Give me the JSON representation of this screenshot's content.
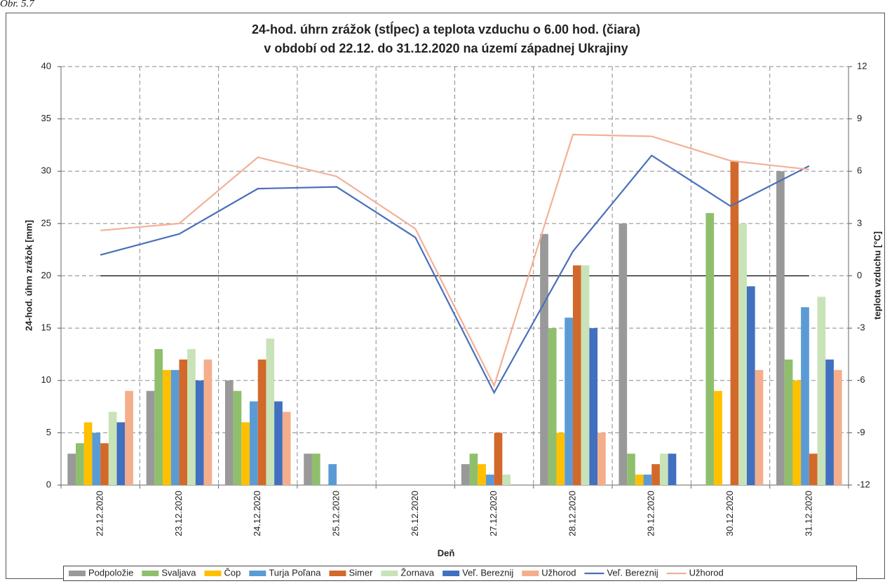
{
  "caption": "Obr. 5.7",
  "chart_data": {
    "type": "bar",
    "title": [
      "24-hod. úhrn zrážok (stĺpec) a teplota vzduchu o 6.00 hod. (čiara)",
      "v období od 22.12. do 31.12.2020  na území západnej Ukrajiny"
    ],
    "x_label": "Deň",
    "y_label": "24-hod. úhrn zrážok [mm]",
    "y2_label": "teplota vzduchu [°C]",
    "categories": [
      "22.12.2020",
      "23.12.2020",
      "24.12.2020",
      "25.12.2020",
      "26.12.2020",
      "27.12.2020",
      "28.12.2020",
      "29.12.2020",
      "30.12.2020",
      "31.12.2020"
    ],
    "ylim": [
      0,
      40
    ],
    "yticks": [
      0,
      5,
      10,
      15,
      20,
      25,
      30,
      35,
      40
    ],
    "y2lim": [
      -12,
      12
    ],
    "y2ticks": [
      -12,
      -9,
      -6,
      -3,
      0,
      3,
      6,
      9,
      12
    ],
    "grid": true,
    "legend": "bottom",
    "series": [
      {
        "name": "Podpoložie",
        "type": "bar",
        "color": "#999999",
        "values": [
          3,
          9,
          10,
          3,
          0,
          2,
          24,
          25,
          0,
          30
        ]
      },
      {
        "name": "Svaljava",
        "type": "bar",
        "color": "#8fbf6c",
        "values": [
          4,
          13,
          9,
          3,
          0,
          3,
          15,
          3,
          26,
          12
        ]
      },
      {
        "name": "Čop",
        "type": "bar",
        "color": "#ffc000",
        "values": [
          6,
          11,
          6,
          0,
          0,
          2,
          5,
          1,
          9,
          10
        ]
      },
      {
        "name": "Turja Poľana",
        "type": "bar",
        "color": "#5b9bd5",
        "values": [
          5,
          11,
          8,
          2,
          0,
          1,
          16,
          1,
          0,
          17
        ]
      },
      {
        "name": "Simer",
        "type": "bar",
        "color": "#d2692a",
        "values": [
          4,
          12,
          12,
          0,
          0,
          5,
          21,
          2,
          31,
          3
        ]
      },
      {
        "name": "Žornava",
        "type": "bar",
        "color": "#c9e3b8",
        "values": [
          7,
          13,
          14,
          0,
          0,
          1,
          21,
          3,
          25,
          18
        ]
      },
      {
        "name": "Veľ. Bereznij",
        "type": "bar",
        "color": "#4170c0",
        "values": [
          6,
          10,
          8,
          0,
          0,
          0,
          15,
          3,
          19,
          12
        ]
      },
      {
        "name": "Užhorod",
        "type": "bar",
        "color": "#f4ae8c",
        "values": [
          9,
          12,
          7,
          0,
          0,
          0,
          5,
          0,
          11,
          11
        ]
      },
      {
        "name": "Veľ. Bereznij",
        "type": "line",
        "axis": "y2",
        "color": "#4a6fba",
        "values": [
          1.2,
          2.4,
          5.0,
          5.1,
          2.2,
          -6.7,
          1.4,
          6.9,
          4.0,
          6.3
        ]
      },
      {
        "name": "Užhorod",
        "type": "line",
        "axis": "y2",
        "color": "#f2b196",
        "values": [
          2.6,
          3.0,
          6.8,
          5.7,
          2.7,
          -6.3,
          8.1,
          8.0,
          6.6,
          6.1
        ]
      }
    ]
  }
}
